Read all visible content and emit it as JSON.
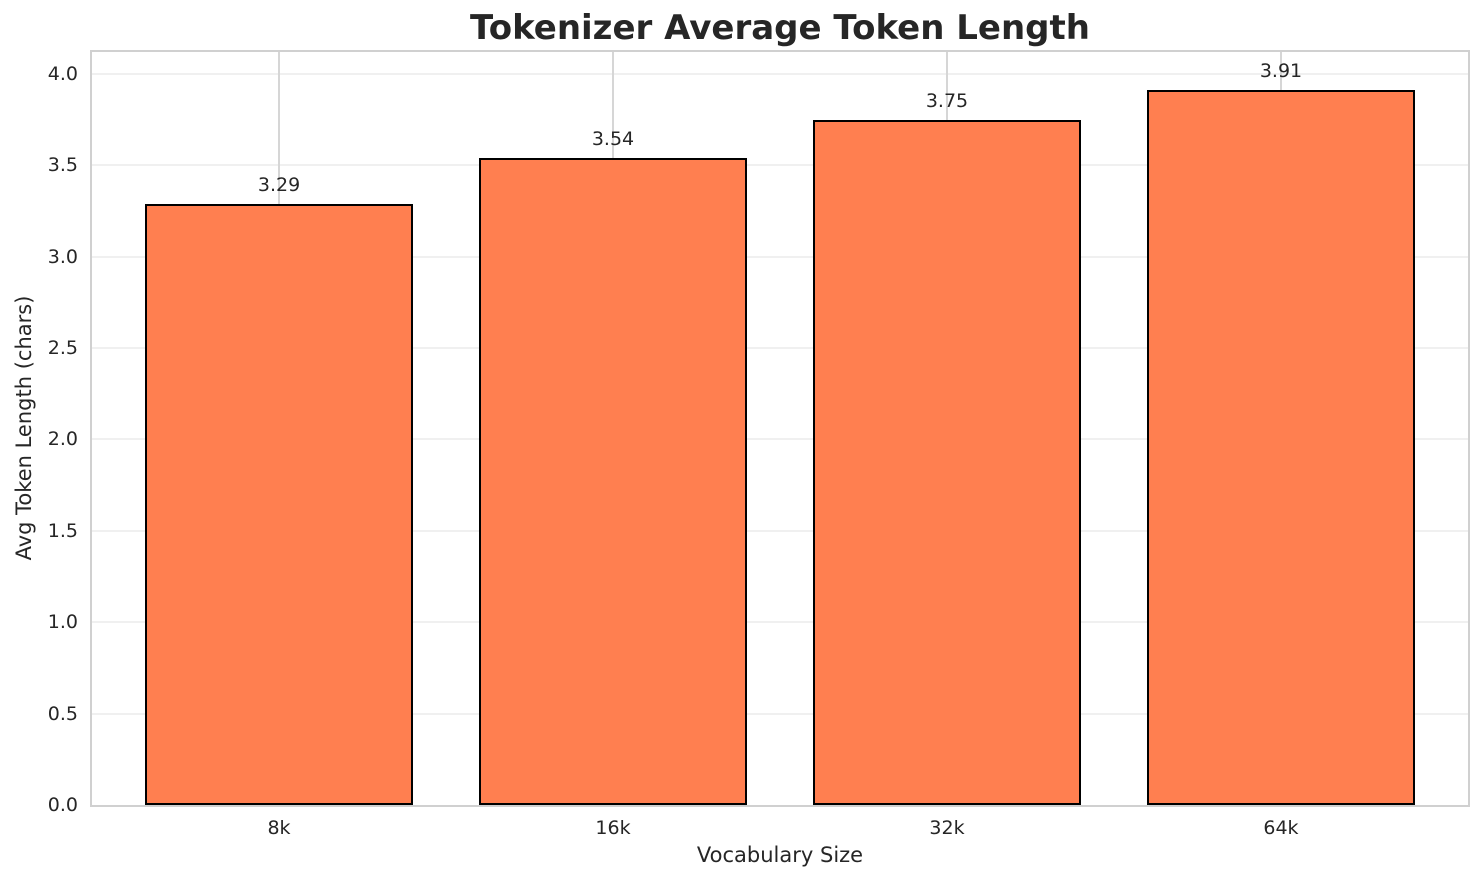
{
  "chart_data": {
    "type": "bar",
    "title": "Tokenizer Average Token Length",
    "xlabel": "Vocabulary Size",
    "ylabel": "Avg Token Length (chars)",
    "categories": [
      "8k",
      "16k",
      "32k",
      "64k"
    ],
    "values": [
      3.29,
      3.54,
      3.75,
      3.91
    ],
    "bar_labels": [
      "3.29",
      "3.54",
      "3.75",
      "3.91"
    ],
    "ylim": [
      0,
      4.12
    ],
    "yticks": [
      0.0,
      0.5,
      1.0,
      1.5,
      2.0,
      2.5,
      3.0,
      3.5,
      4.0
    ],
    "ytick_labels": [
      "0.0",
      "0.5",
      "1.0",
      "1.5",
      "2.0",
      "2.5",
      "3.0",
      "3.5",
      "4.0"
    ],
    "grid": true,
    "legend_position": "none",
    "colors": {
      "bar_fill": "#ff7f50",
      "bar_edge": "#000000",
      "grid_horizontal": "#f0f0f0",
      "grid_vertical": "#d6d6d6",
      "spine": "#d0d0d0",
      "title_text": "#262626",
      "tick_text": "#262626",
      "background": "#ffffff"
    }
  }
}
